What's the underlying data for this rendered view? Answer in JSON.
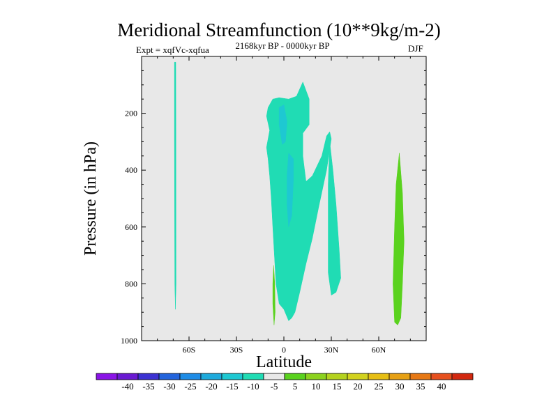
{
  "chart_data": {
    "type": "heatmap",
    "title": "Meridional Streamfunction (10**9kg/m-2)",
    "subtitle_left": "Expt = xqfVc-xqfua",
    "subtitle_center": "2168kyr BP - 0000kyr BP",
    "subtitle_right": "DJF",
    "xlabel": "Latitude",
    "ylabel": "Pressure (in hPa)",
    "xlim": [
      -90,
      90
    ],
    "ylim": [
      1000,
      0
    ],
    "y_reversed": true,
    "background_color": "#e8e8e8",
    "xticks": [
      {
        "value": -60,
        "label": "60S"
      },
      {
        "value": -30,
        "label": "30S"
      },
      {
        "value": 0,
        "label": "0"
      },
      {
        "value": 30,
        "label": "30N"
      },
      {
        "value": 60,
        "label": "60N"
      }
    ],
    "yticks": [
      {
        "value": 200,
        "label": "200"
      },
      {
        "value": 400,
        "label": "400"
      },
      {
        "value": 600,
        "label": "600"
      },
      {
        "value": 800,
        "label": "800"
      },
      {
        "value": 1000,
        "label": "1000"
      }
    ],
    "colorbar": {
      "colors": [
        "#8a14e6",
        "#6a1ad2",
        "#3c32d2",
        "#2364dc",
        "#1e8ce6",
        "#1eaadc",
        "#1ec8d2",
        "#20dcb4",
        "#e8e8e8",
        "#5ad21e",
        "#8cd21e",
        "#b4d21e",
        "#d2d21e",
        "#e6be14",
        "#e6a014",
        "#e67814",
        "#e6501e",
        "#d2280f"
      ],
      "labels": [
        "-40",
        "-35",
        "-30",
        "-25",
        "-20",
        "-15",
        "-10",
        "-5",
        "5",
        "10",
        "15",
        "20",
        "25",
        "30",
        "35",
        "40"
      ]
    },
    "regions": [
      {
        "name": "vertical-band-65S",
        "color": "#20dcb4",
        "points": [
          [
            -69.2,
            20
          ],
          [
            -68.4,
            20
          ],
          [
            -68.3,
            290
          ],
          [
            -68.2,
            800
          ],
          [
            -68.6,
            890
          ],
          [
            -69,
            800
          ],
          [
            -69.2,
            290
          ]
        ]
      },
      {
        "name": "central-cell",
        "color": "#20dcb4",
        "points": [
          [
            -10,
            180
          ],
          [
            -7,
            150
          ],
          [
            -3,
            145
          ],
          [
            3,
            150
          ],
          [
            8,
            140
          ],
          [
            12,
            90
          ],
          [
            16,
            150
          ],
          [
            16,
            240
          ],
          [
            12,
            270
          ],
          [
            12,
            350
          ],
          [
            14,
            440
          ],
          [
            18,
            420
          ],
          [
            24,
            350
          ],
          [
            27,
            280
          ],
          [
            29,
            265
          ],
          [
            30,
            290
          ],
          [
            27,
            400
          ],
          [
            22,
            530
          ],
          [
            18,
            640
          ],
          [
            14,
            730
          ],
          [
            10,
            830
          ],
          [
            7,
            900
          ],
          [
            5,
            920
          ],
          [
            3,
            930
          ],
          [
            0,
            890
          ],
          [
            -3,
            870
          ],
          [
            -5,
            800
          ],
          [
            -6,
            700
          ],
          [
            -7,
            600
          ],
          [
            -8,
            500
          ],
          [
            -9,
            420
          ],
          [
            -10,
            360
          ],
          [
            -11,
            320
          ],
          [
            -9,
            260
          ],
          [
            -11,
            210
          ]
        ]
      },
      {
        "name": "central-core-upper",
        "color": "#1ec8d2",
        "points": [
          [
            -3,
            180
          ],
          [
            0,
            170
          ],
          [
            2,
            230
          ],
          [
            1,
            300
          ],
          [
            -1,
            310
          ],
          [
            -3,
            240
          ]
        ]
      },
      {
        "name": "central-core-lower",
        "color": "#1ec8d2",
        "points": [
          [
            3,
            340
          ],
          [
            6,
            360
          ],
          [
            6,
            440
          ],
          [
            5,
            560
          ],
          [
            3,
            600
          ],
          [
            2,
            520
          ],
          [
            2,
            420
          ]
        ]
      },
      {
        "name": "cell-30N",
        "color": "#20dcb4",
        "points": [
          [
            29,
            300
          ],
          [
            31,
            400
          ],
          [
            33,
            520
          ],
          [
            35,
            680
          ],
          [
            36,
            780
          ],
          [
            33,
            830
          ],
          [
            30,
            840
          ],
          [
            28,
            760
          ],
          [
            28,
            600
          ],
          [
            28,
            450
          ]
        ]
      },
      {
        "name": "positive-cell-5S",
        "color": "#5ad21e",
        "points": [
          [
            -6.5,
            735
          ],
          [
            -5.8,
            800
          ],
          [
            -5.5,
            900
          ],
          [
            -6.2,
            945
          ],
          [
            -7,
            870
          ],
          [
            -7,
            800
          ]
        ]
      },
      {
        "name": "positive-cell-70N",
        "color": "#5ad21e",
        "points": [
          [
            73,
            340
          ],
          [
            75,
            480
          ],
          [
            76,
            650
          ],
          [
            75,
            800
          ],
          [
            74,
            920
          ],
          [
            72,
            945
          ],
          [
            70,
            935
          ],
          [
            69,
            800
          ],
          [
            70,
            600
          ],
          [
            71,
            450
          ]
        ]
      }
    ]
  }
}
